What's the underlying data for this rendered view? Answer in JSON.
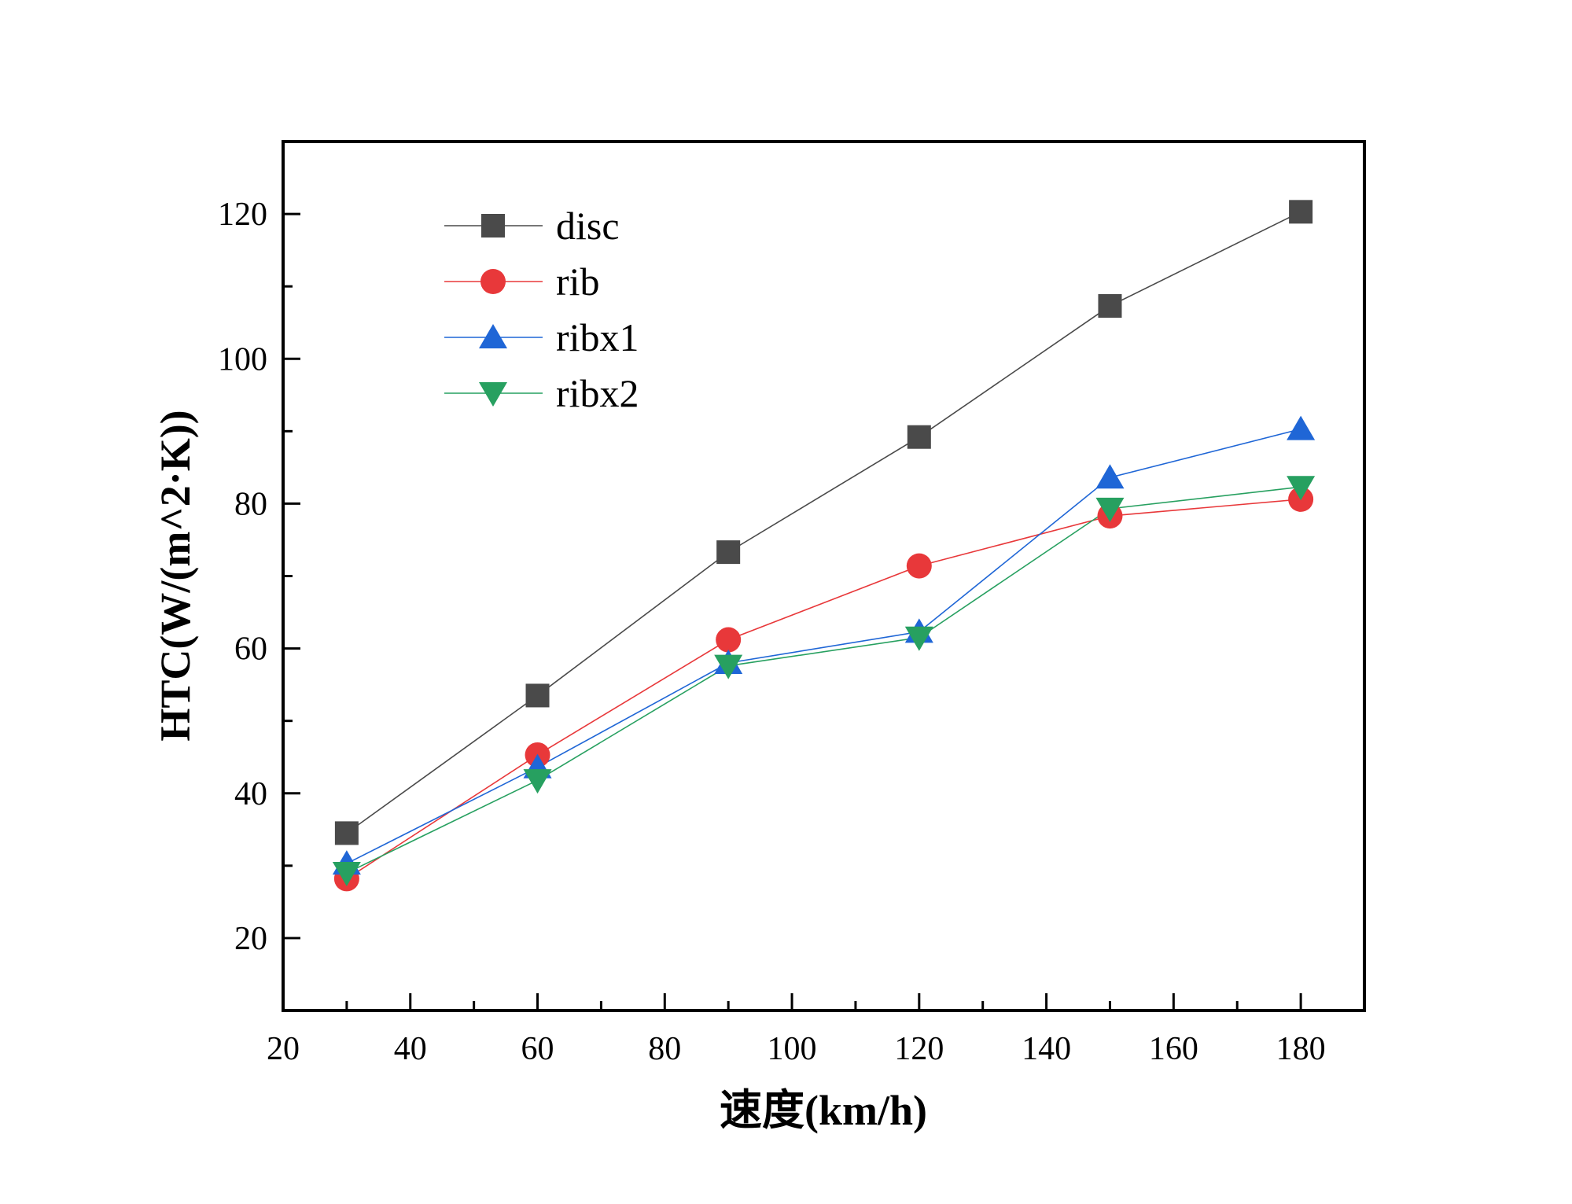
{
  "chart_data": {
    "type": "line",
    "title": "",
    "xlabel": "速度(km/h)",
    "ylabel": "HTC(W/(m^2·K))",
    "xlim": [
      20,
      190
    ],
    "ylim": [
      10,
      130
    ],
    "x_ticks": [
      20,
      40,
      60,
      80,
      100,
      120,
      140,
      160,
      180
    ],
    "y_ticks": [
      20,
      40,
      60,
      80,
      100,
      120
    ],
    "x_tick_labels": [
      "20",
      "40",
      "60",
      "80",
      "100",
      "120",
      "140",
      "160",
      "180"
    ],
    "y_tick_labels": [
      "20",
      "40",
      "60",
      "80",
      "100",
      "120"
    ],
    "grid": false,
    "legend_position": "top-left",
    "x": [
      30,
      60,
      90,
      120,
      150,
      180
    ],
    "series": [
      {
        "name": "disc",
        "color": "#4a4a4a",
        "marker": "square",
        "values": [
          34.5,
          53.5,
          73.3,
          89.2,
          107.3,
          120.3
        ]
      },
      {
        "name": "rib",
        "color": "#e8383a",
        "marker": "circle",
        "values": [
          28.2,
          45.3,
          61.2,
          71.4,
          78.3,
          80.6
        ]
      },
      {
        "name": "ribx1",
        "color": "#1f66d6",
        "marker": "triangle-up",
        "values": [
          30.3,
          43.6,
          58.0,
          62.3,
          83.6,
          90.3
        ]
      },
      {
        "name": "ribx2",
        "color": "#27a060",
        "marker": "triangle-down",
        "values": [
          29.0,
          41.8,
          57.6,
          61.5,
          79.3,
          82.3
        ]
      }
    ]
  }
}
